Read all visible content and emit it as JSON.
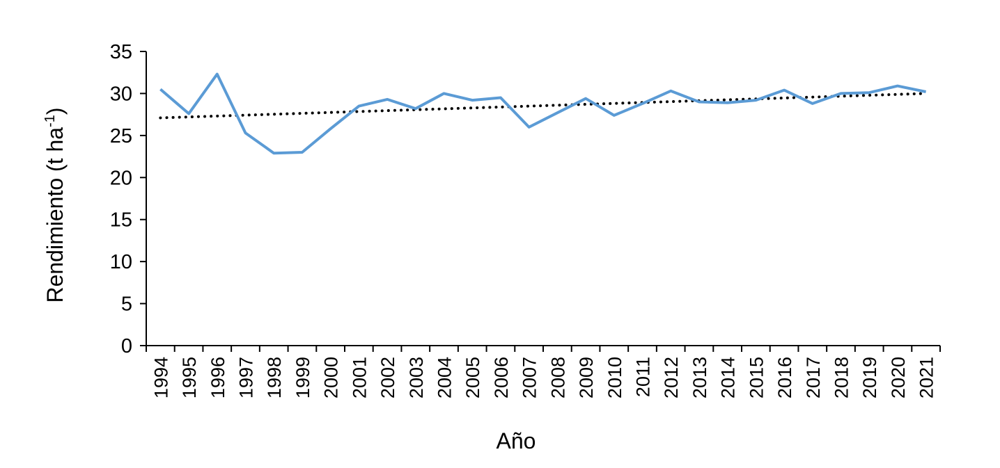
{
  "chart_data": {
    "type": "line",
    "xlabel": "Año",
    "ylabel_main": "Rendimiento (t ha",
    "ylabel_sup": "-1",
    "ylabel_close": ")",
    "ylim": [
      0,
      35
    ],
    "yticks": [
      "0",
      "5",
      "10",
      "15",
      "20",
      "25",
      "30",
      "35"
    ],
    "categories": [
      "1994",
      "1995",
      "1996",
      "1997",
      "1998",
      "1999",
      "2000",
      "2001",
      "2002",
      "2003",
      "2004",
      "2005",
      "2006",
      "2007",
      "2008",
      "2009",
      "2010",
      "2011",
      "2012",
      "2013",
      "2014",
      "2015",
      "2016",
      "2017",
      "2018",
      "2019",
      "2020",
      "2021"
    ],
    "series": [
      {
        "values": [
          30.5,
          27.6,
          32.3,
          25.3,
          22.9,
          23.0,
          25.8,
          28.5,
          29.3,
          28.2,
          30.0,
          29.2,
          29.5,
          26.0,
          27.7,
          29.4,
          27.4,
          28.8,
          30.3,
          29.0,
          28.9,
          29.2,
          30.4,
          28.8,
          30.0,
          30.1,
          30.9,
          30.2
        ],
        "color": "#5b9bd5"
      }
    ],
    "trendline": {
      "type": "linear",
      "start": 27.1,
      "end": 30.0,
      "color": "#000000",
      "style": "dotted"
    },
    "grid": false,
    "legend": "none"
  }
}
